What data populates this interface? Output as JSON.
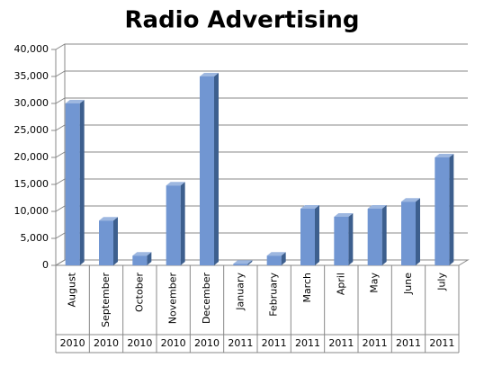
{
  "chart_data": {
    "type": "bar3d",
    "title": "Radio Advertising",
    "categories": [
      "August",
      "September",
      "October",
      "November",
      "December",
      "January",
      "February",
      "March",
      "April",
      "May",
      "June",
      "July"
    ],
    "years": [
      "2010",
      "2010",
      "2010",
      "2010",
      "2010",
      "2011",
      "2011",
      "2011",
      "2011",
      "2011",
      "2011",
      "2011"
    ],
    "values": [
      30000,
      8300,
      1800,
      14800,
      35000,
      300,
      1800,
      10500,
      9000,
      10500,
      11800,
      20000
    ],
    "color": "#7196d2",
    "ylim": [
      0,
      40000
    ],
    "yticks": [
      {
        "value": 0,
        "label": "0"
      },
      {
        "value": 5000,
        "label": "5,000"
      },
      {
        "value": 10000,
        "label": "10,000"
      },
      {
        "value": 15000,
        "label": "15,000"
      },
      {
        "value": 20000,
        "label": "20,000"
      },
      {
        "value": 25000,
        "label": "25,000"
      },
      {
        "value": 30000,
        "label": "30,000"
      },
      {
        "value": 35000,
        "label": "35,000"
      },
      {
        "value": 40000,
        "label": "40,000"
      }
    ],
    "grid": true
  }
}
